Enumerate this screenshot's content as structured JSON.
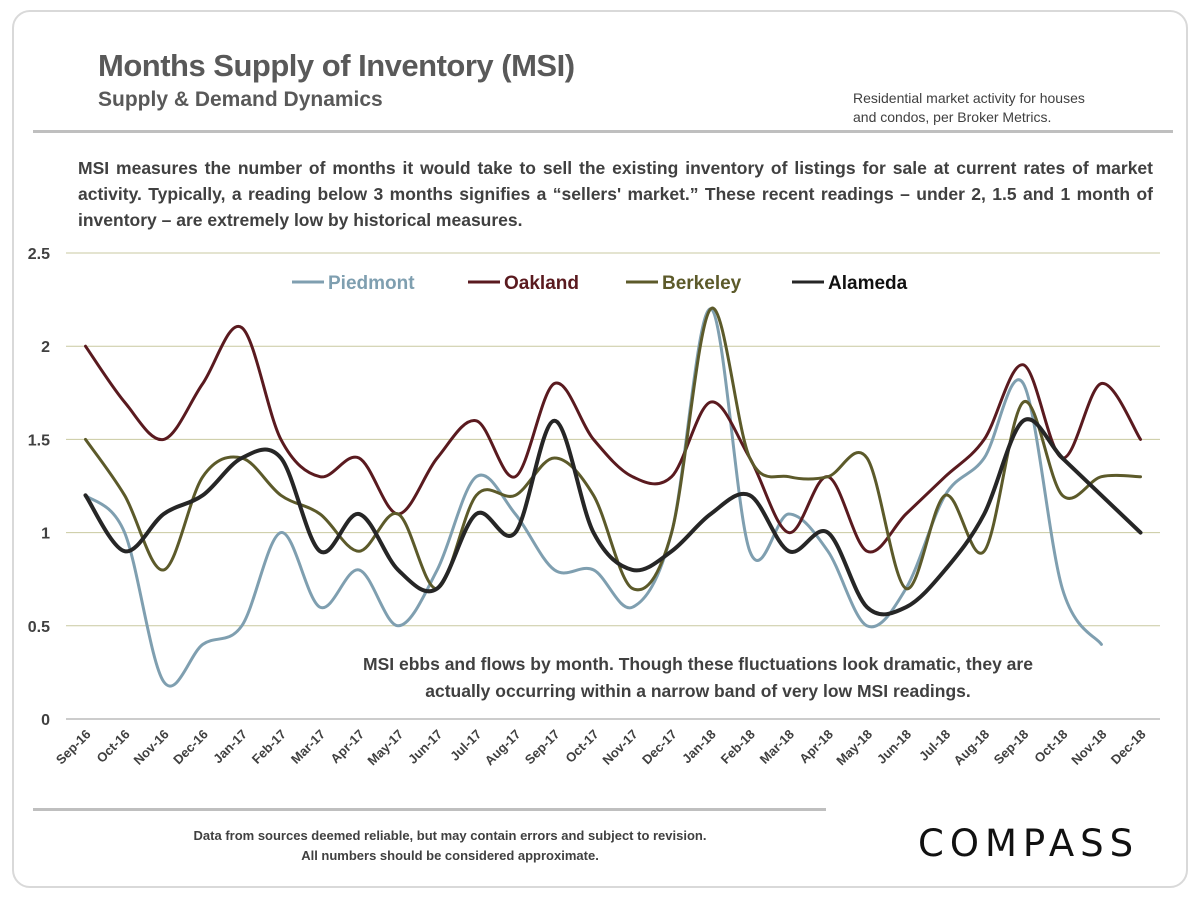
{
  "header": {
    "title": "Months Supply of Inventory (MSI)",
    "subtitle": "Supply & Demand Dynamics",
    "note_line1": "Residential market activity for houses",
    "note_line2": "and condos, per Broker Metrics."
  },
  "description": "MSI measures the number of months it would take to sell the existing inventory of listings for sale at current rates of market activity. Typically, a reading below 3 months signifies a “sellers' market.” These recent readings – under 2, 1.5 and 1 month of inventory – are extremely low by historical measures.",
  "footer": {
    "line1": "Data from sources deemed reliable, but may contain errors and subject to revision.",
    "line2": "All numbers should be considered approximate.",
    "logo": "COMPASS"
  },
  "chart_data": {
    "type": "line",
    "x": [
      "Sep-16",
      "Oct-16",
      "Nov-16",
      "Dec-16",
      "Jan-17",
      "Feb-17",
      "Mar-17",
      "Apr-17",
      "May-17",
      "Jun-17",
      "Jul-17",
      "Aug-17",
      "Sep-17",
      "Oct-17",
      "Nov-17",
      "Dec-17",
      "Jan-18",
      "Feb-18",
      "Mar-18",
      "Apr-18",
      "May-18",
      "Jun-18",
      "Jul-18",
      "Aug-18",
      "Sep-18",
      "Oct-18",
      "Nov-18",
      "Dec-18"
    ],
    "ylim": [
      0,
      2.5
    ],
    "yticks": [
      "0",
      "0.5",
      "1",
      "1.5",
      "2",
      "2.5"
    ],
    "grid": true,
    "legend_position": "top",
    "annotation": "MSI ebbs and flows by month. Though these fluctuations look dramatic, they are actually occurring within a narrow band of very low MSI readings.",
    "series": [
      {
        "name": "Piedmont",
        "color": "#7f9fb0",
        "values": [
          1.2,
          1.0,
          0.2,
          0.4,
          0.5,
          1.0,
          0.6,
          0.8,
          0.5,
          0.8,
          1.3,
          1.1,
          0.8,
          0.8,
          0.6,
          1.0,
          2.2,
          0.9,
          1.1,
          0.9,
          0.5,
          0.7,
          1.2,
          1.4,
          1.8,
          0.7,
          0.4,
          null
        ]
      },
      {
        "name": "Oakland",
        "color": "#5a1a1f",
        "values": [
          2.0,
          1.7,
          1.5,
          1.8,
          2.1,
          1.5,
          1.3,
          1.4,
          1.1,
          1.4,
          1.6,
          1.3,
          1.8,
          1.5,
          1.3,
          1.3,
          1.7,
          1.4,
          1.0,
          1.3,
          0.9,
          1.1,
          1.3,
          1.5,
          1.9,
          1.4,
          1.8,
          1.5
        ]
      },
      {
        "name": "Berkeley",
        "color": "#5c5a2a",
        "values": [
          1.5,
          1.2,
          0.8,
          1.3,
          1.4,
          1.2,
          1.1,
          0.9,
          1.1,
          0.7,
          1.2,
          1.2,
          1.4,
          1.2,
          0.7,
          1.0,
          2.2,
          1.4,
          1.3,
          1.3,
          1.4,
          0.7,
          1.2,
          0.9,
          1.7,
          1.2,
          1.3,
          1.3
        ]
      },
      {
        "name": "Alameda",
        "color": "#262626",
        "values": [
          1.2,
          0.9,
          1.1,
          1.2,
          1.4,
          1.4,
          0.9,
          1.1,
          0.8,
          0.7,
          1.1,
          1.0,
          1.6,
          1.0,
          0.8,
          0.9,
          1.1,
          1.2,
          0.9,
          1.0,
          0.6,
          0.6,
          0.8,
          1.1,
          1.6,
          1.4,
          1.2,
          1.0
        ]
      }
    ]
  }
}
